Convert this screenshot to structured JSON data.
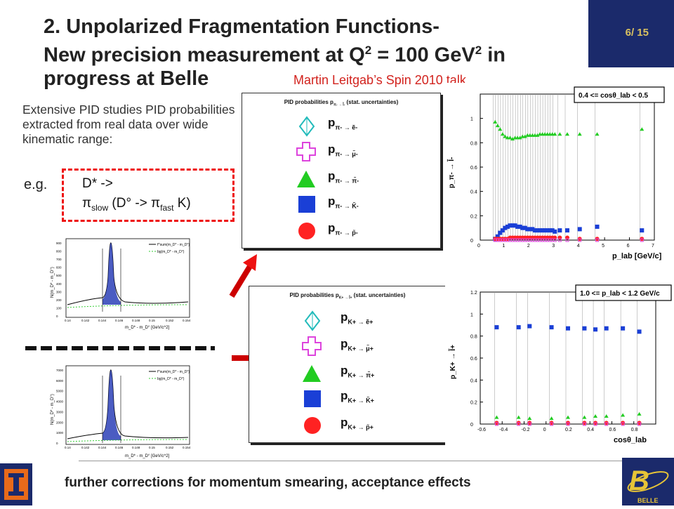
{
  "title": {
    "line1": "2. Unpolarized Fragmentation Functions-",
    "line2_pre": "New precision measurement at Q",
    "line2_sup": "2",
    "line2_mid": " = 100 GeV",
    "line2_sup2": "2",
    "line2_post": " in",
    "line3": "progress at Belle"
  },
  "page_number": "6/ 15",
  "credit": "Martin Leitgab’s Spin 2010 talk",
  "intro_text": "Extensive PID studies PID probabilities extracted from real data over wide kinematic range:",
  "example": {
    "prefix": "e.g.",
    "line1": "D* ->",
    "line2_a": "π",
    "line2_sub1": "slow",
    "line2_b": " (D° -> π",
    "line2_sub2": "fast",
    "line2_c": " K)"
  },
  "pion_panel": {
    "header": "PID probabilities p",
    "header_sub": "π- → l̃-",
    "header_tail": "(stat. uncertainties)",
    "rows": [
      {
        "p": "p",
        "sub": "π- → ẽ-"
      },
      {
        "p": "p",
        "sub": "π- → μ̃-"
      },
      {
        "p": "p",
        "sub": "π- → π̃-"
      },
      {
        "p": "p",
        "sub": "π- → K̃-"
      },
      {
        "p": "p",
        "sub": "π- → p̃-"
      }
    ]
  },
  "kaon_panel": {
    "header": "PID probabilities p",
    "header_sub": "K+ → l̃+",
    "header_tail": "(stat. uncertainties)",
    "rows": [
      {
        "p": "p",
        "sub": "K+ → ẽ+"
      },
      {
        "p": "p",
        "sub": "K+ → μ̃+"
      },
      {
        "p": "p",
        "sub": "K+ → π̃+"
      },
      {
        "p": "p",
        "sub": "K+ → K̃+"
      },
      {
        "p": "p",
        "sub": "K+ → p̃+"
      }
    ]
  },
  "mass_hist_top": {
    "ylabel": "N(m_D* - m_D°)",
    "xlabel": "m_D* - m_D° [GeV/c^2]",
    "legend1": "f^sum(m_D* - m_D°)",
    "legend2": "bg(m_D* - m_D°)",
    "xticks": [
      "0.14",
      "0.142",
      "0.144",
      "0.146",
      "0.148",
      "0.15",
      "0.152",
      "0.154"
    ],
    "yticks": [
      "0",
      "100",
      "200",
      "300",
      "400",
      "500",
      "600",
      "700",
      "800",
      "900"
    ]
  },
  "mass_hist_bottom": {
    "ylabel": "N(m_D* - m_D°)",
    "xlabel": "m_D* - m_D° [GeV/c^2]",
    "legend1": "f^sum(m_D* - m_D°)",
    "legend2": "bg(m_D* - m_D°)",
    "xticks": [
      "0.14",
      "0.142",
      "0.144",
      "0.146",
      "0.148",
      "0.15",
      "0.152",
      "0.154"
    ],
    "yticks": [
      "0",
      "1000",
      "2000",
      "3000",
      "4000",
      "5000",
      "6000",
      "7000"
    ]
  },
  "chart_data": [
    {
      "type": "scatter",
      "title": "0.4 <= cosθ_lab < 0.5",
      "xlabel": "p_lab [GeV/c]",
      "ylabel": "p_π- → l̃-",
      "xlim": [
        0,
        7
      ],
      "ylim": [
        0,
        1.2
      ],
      "xticks": [
        "0",
        "1",
        "2",
        "3",
        "4",
        "5",
        "6",
        "7"
      ],
      "yticks": [
        "0",
        "0.2",
        "0.4",
        "0.6",
        "0.8",
        "1"
      ],
      "x": [
        0.6,
        0.7,
        0.8,
        0.9,
        1.0,
        1.1,
        1.2,
        1.3,
        1.4,
        1.5,
        1.6,
        1.7,
        1.8,
        1.9,
        2.0,
        2.1,
        2.2,
        2.3,
        2.4,
        2.5,
        2.6,
        2.7,
        2.8,
        2.9,
        3.0,
        3.2,
        3.5,
        4.0,
        4.7,
        6.5
      ],
      "series": [
        {
          "marker": "triangle",
          "color": "#22cc22",
          "values": [
            0.97,
            0.94,
            0.91,
            0.87,
            0.85,
            0.84,
            0.84,
            0.83,
            0.84,
            0.84,
            0.84,
            0.85,
            0.85,
            0.86,
            0.86,
            0.86,
            0.86,
            0.86,
            0.87,
            0.87,
            0.87,
            0.87,
            0.87,
            0.87,
            0.87,
            0.87,
            0.87,
            0.87,
            0.87,
            0.91
          ]
        },
        {
          "marker": "square",
          "color": "#1a3fd6",
          "values": [
            0.01,
            0.03,
            0.06,
            0.08,
            0.1,
            0.11,
            0.12,
            0.12,
            0.12,
            0.11,
            0.11,
            0.1,
            0.1,
            0.09,
            0.09,
            0.09,
            0.08,
            0.08,
            0.08,
            0.08,
            0.08,
            0.08,
            0.08,
            0.08,
            0.07,
            0.08,
            0.08,
            0.09,
            0.11,
            0.08
          ]
        },
        {
          "marker": "circle",
          "color": "#ff2222",
          "values": [
            0.01,
            0.01,
            0.01,
            0.01,
            0.01,
            0.01,
            0.02,
            0.02,
            0.02,
            0.02,
            0.02,
            0.02,
            0.02,
            0.02,
            0.02,
            0.02,
            0.02,
            0.02,
            0.02,
            0.02,
            0.02,
            0.02,
            0.02,
            0.02,
            0.02,
            0.02,
            0.02,
            0.01,
            0.01,
            0.01
          ]
        },
        {
          "marker": "cross",
          "color": "#dd44dd",
          "values": [
            0.0,
            0.0,
            0.0,
            0.0,
            0.0,
            0.0,
            0.0,
            0.0,
            0.0,
            0.0,
            0.0,
            0.0,
            0.0,
            0.0,
            0.0,
            0.0,
            0.0,
            0.0,
            0.0,
            0.0,
            0.0,
            0.0,
            0.0,
            0.0,
            0.0,
            0.0,
            0.0,
            0.0,
            0.0,
            0.0
          ]
        }
      ]
    },
    {
      "type": "scatter",
      "title": "1.0 <= p_lab < 1.2 GeV/c",
      "xlabel": "cosθ_lab",
      "ylabel": "p_K+ → l̃+",
      "xlim": [
        -0.6,
        1.0
      ],
      "ylim": [
        0,
        1.2
      ],
      "xticks": [
        "-0.6",
        "-0.4",
        "-0.2",
        "0",
        "0.2",
        "0.4",
        "0.6",
        "0.8"
      ],
      "yticks": [
        "0",
        "0.2",
        "0.4",
        "0.6",
        "0.8",
        "1",
        "1.2"
      ],
      "x": [
        -0.45,
        -0.25,
        -0.15,
        0.05,
        0.2,
        0.35,
        0.45,
        0.55,
        0.7,
        0.85
      ],
      "series": [
        {
          "marker": "square",
          "color": "#1a3fd6",
          "values": [
            0.88,
            0.88,
            0.89,
            0.88,
            0.87,
            0.87,
            0.86,
            0.87,
            0.87,
            0.84
          ]
        },
        {
          "marker": "triangle",
          "color": "#22cc22",
          "values": [
            0.06,
            0.06,
            0.05,
            0.05,
            0.06,
            0.06,
            0.07,
            0.07,
            0.08,
            0.09
          ]
        },
        {
          "marker": "circle",
          "color": "#ff2222",
          "values": [
            0.01,
            0.01,
            0.01,
            0.01,
            0.01,
            0.01,
            0.01,
            0.01,
            0.01,
            0.01
          ]
        },
        {
          "marker": "cross",
          "color": "#dd44dd",
          "values": [
            0.0,
            0.0,
            0.0,
            0.0,
            0.0,
            0.0,
            0.0,
            0.0,
            0.0,
            0.0
          ]
        }
      ]
    }
  ],
  "footer_text": "further corrections for momentum smearing, acceptance effects",
  "logos": {
    "left": "illinois-logo",
    "right": "belle-logo",
    "right_text": "BELLE"
  },
  "colors": {
    "title_bar": "#1b2a6b",
    "accent_red": "#e11111",
    "page_num": "#d8c060"
  }
}
